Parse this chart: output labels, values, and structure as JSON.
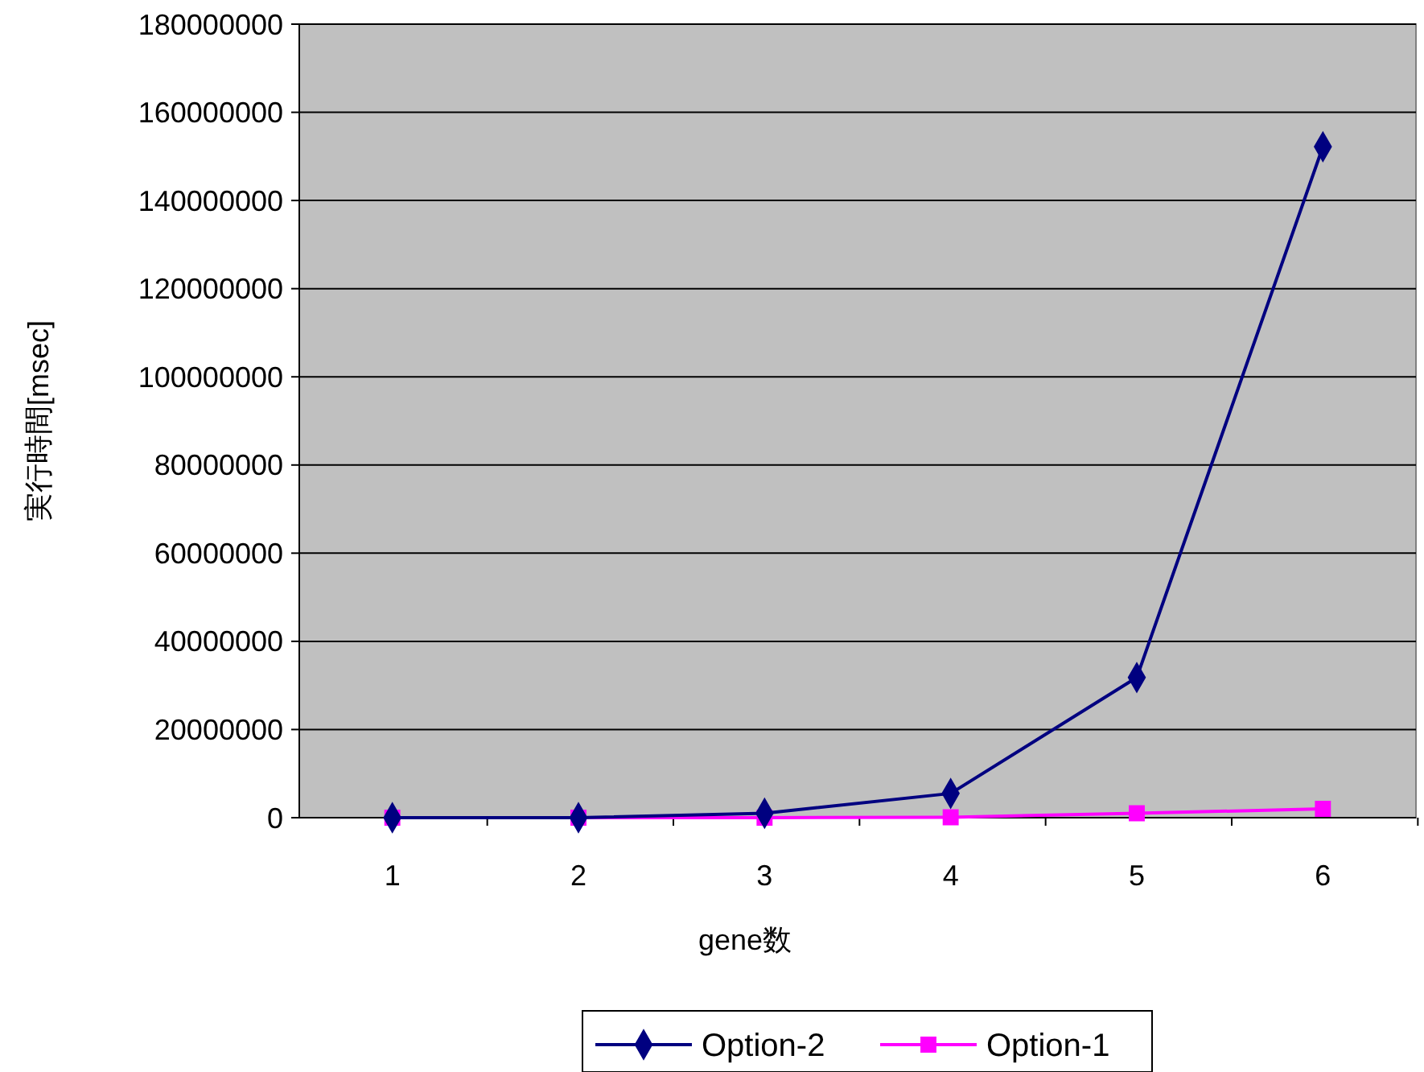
{
  "chart_data": {
    "type": "line",
    "xlabel": "gene数",
    "ylabel": "実行時間[msec]",
    "categories": [
      "1",
      "2",
      "3",
      "4",
      "5",
      "6"
    ],
    "series": [
      {
        "name": "Option-2",
        "color": "#000080",
        "marker": "diamond",
        "values": [
          0,
          0,
          1000000,
          5500000,
          31800000,
          152200000
        ]
      },
      {
        "name": "Option-1",
        "color": "#ff00ff",
        "marker": "square",
        "values": [
          0,
          0,
          0,
          100000,
          1000000,
          2000000
        ]
      }
    ],
    "ylim": [
      0,
      180000000
    ],
    "yticks": [
      0,
      20000000,
      40000000,
      60000000,
      80000000,
      100000000,
      120000000,
      140000000,
      160000000,
      180000000
    ],
    "grid": "y",
    "legend": "bottom",
    "line_style": "solid"
  }
}
